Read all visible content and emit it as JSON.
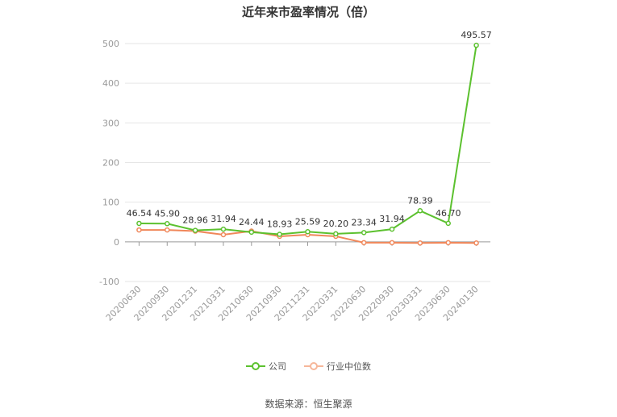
{
  "chart_data": {
    "type": "line",
    "title": "近年来市盈率情况（倍）",
    "categories": [
      "20200630",
      "20200930",
      "20201231",
      "20210331",
      "20210630",
      "20210930",
      "20211231",
      "20220331",
      "20220630",
      "20220930",
      "20230331",
      "20230630",
      "20240130"
    ],
    "series": [
      {
        "name": "公司",
        "color": "#5cc12f",
        "values": [
          46.54,
          45.9,
          28.96,
          31.94,
          24.44,
          18.93,
          25.59,
          20.2,
          23.34,
          31.94,
          78.39,
          46.7,
          495.57
        ],
        "labels": [
          "46.54",
          "45.90",
          "28.96",
          "31.94",
          "24.44",
          "18.93",
          "25.59",
          "20.20",
          "23.34",
          "31.94",
          "78.39",
          "46.70",
          "495.57"
        ]
      },
      {
        "name": "行业中位数",
        "color": "#f0875a",
        "values": [
          30,
          30,
          27,
          18,
          27,
          14,
          18,
          14,
          -2,
          -2,
          -3,
          -2,
          -3
        ]
      }
    ],
    "ylim": [
      -100,
      500
    ],
    "yticks": [
      "-100",
      "0",
      "100",
      "200",
      "300",
      "400",
      "500"
    ],
    "grid": true,
    "legend_position": "bottom"
  },
  "source": "数据来源：恒生聚源"
}
